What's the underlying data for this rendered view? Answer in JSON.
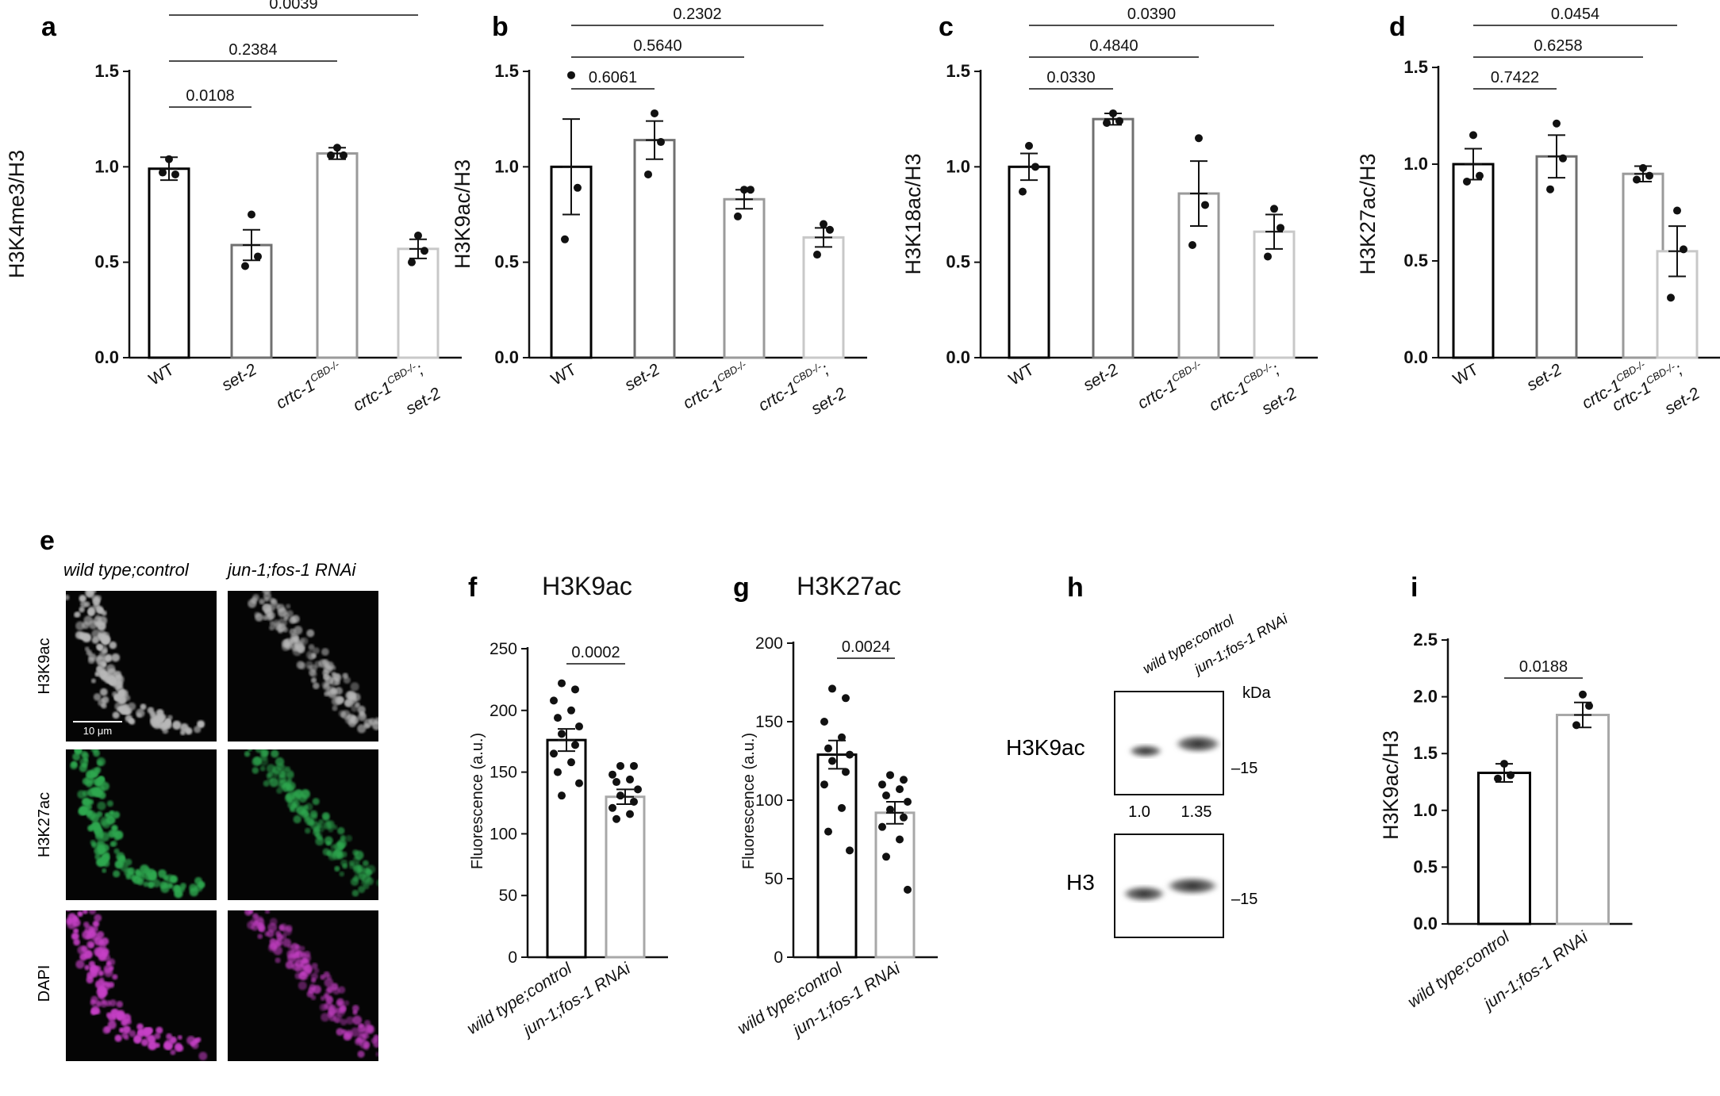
{
  "chart_data": [
    {
      "panel": "a",
      "type": "bar",
      "ylabel": "H3K4me3/H3",
      "yticks": [
        "0.0",
        "0.5",
        "1.0",
        "1.5"
      ],
      "ylim": [
        0,
        1.5
      ],
      "categories": [
        {
          "label": "WT",
          "italic": false,
          "sup": "",
          "line2": ""
        },
        {
          "label": "set-2",
          "italic": true,
          "sup": "",
          "line2": ""
        },
        {
          "label": "crtc-1",
          "italic": true,
          "sup": "CBD-/-",
          "line2": ""
        },
        {
          "label": "crtc-1",
          "italic": true,
          "sup": "CBD-/-",
          "line2": "; set-2"
        }
      ],
      "values": [
        0.99,
        0.59,
        1.07,
        0.57
      ],
      "errors": [
        0.06,
        0.08,
        0.03,
        0.05
      ],
      "points": [
        [
          1.04,
          0.96,
          0.97
        ],
        [
          0.75,
          0.53,
          0.48
        ],
        [
          1.1,
          1.06,
          1.06
        ],
        [
          0.64,
          0.56,
          0.5
        ]
      ],
      "comparisons": [
        {
          "from": 0,
          "to": 1,
          "label": "0.0108"
        },
        {
          "from": 0,
          "to": 2,
          "label": "0.2384"
        },
        {
          "from": 0,
          "to": 3,
          "label": "0.0039"
        }
      ]
    },
    {
      "panel": "b",
      "type": "bar",
      "ylabel": "H3K9ac/H3",
      "yticks": [
        "0.0",
        "0.5",
        "1.0",
        "1.5"
      ],
      "ylim": [
        0,
        1.5
      ],
      "categories": [
        {
          "label": "WT",
          "italic": false,
          "sup": "",
          "line2": ""
        },
        {
          "label": "set-2",
          "italic": true,
          "sup": "",
          "line2": ""
        },
        {
          "label": "crtc-1",
          "italic": true,
          "sup": "CBD-/-",
          "line2": ""
        },
        {
          "label": "crtc-1",
          "italic": true,
          "sup": "CBD-/-",
          "line2": "; set-2"
        }
      ],
      "values": [
        1.0,
        1.14,
        0.83,
        0.63
      ],
      "errors": [
        0.25,
        0.1,
        0.05,
        0.05
      ],
      "points": [
        [
          1.48,
          0.89,
          0.62
        ],
        [
          1.28,
          1.13,
          0.96
        ],
        [
          0.88,
          0.88,
          0.74
        ],
        [
          0.7,
          0.67,
          0.54
        ]
      ],
      "comparisons": [
        {
          "from": 0,
          "to": 1,
          "label": "0.6061"
        },
        {
          "from": 0,
          "to": 2,
          "label": "0.5640"
        },
        {
          "from": 0,
          "to": 3,
          "label": "0.2302"
        }
      ]
    },
    {
      "panel": "c",
      "type": "bar",
      "ylabel": "H3K18ac/H3",
      "yticks": [
        "0.0",
        "0.5",
        "1.0",
        "1.5"
      ],
      "ylim": [
        0,
        1.5
      ],
      "categories": [
        {
          "label": "WT",
          "italic": false,
          "sup": "",
          "line2": ""
        },
        {
          "label": "set-2",
          "italic": true,
          "sup": "",
          "line2": ""
        },
        {
          "label": "crtc-1",
          "italic": true,
          "sup": "CBD-/-",
          "line2": ""
        },
        {
          "label": "crtc-1",
          "italic": true,
          "sup": "CBD-/-",
          "line2": "; set-2"
        }
      ],
      "values": [
        1.0,
        1.25,
        0.86,
        0.66
      ],
      "errors": [
        0.07,
        0.03,
        0.17,
        0.09
      ],
      "points": [
        [
          1.11,
          1.0,
          0.87
        ],
        [
          1.28,
          1.24,
          1.23
        ],
        [
          1.15,
          0.8,
          0.59
        ],
        [
          0.78,
          0.68,
          0.53
        ]
      ],
      "comparisons": [
        {
          "from": 0,
          "to": 1,
          "label": "0.0330"
        },
        {
          "from": 0,
          "to": 2,
          "label": "0.4840"
        },
        {
          "from": 0,
          "to": 3,
          "label": "0.0390"
        }
      ]
    },
    {
      "panel": "d",
      "type": "bar",
      "ylabel": "H3K27ac/H3",
      "yticks": [
        "0.0",
        "0.5",
        "1.0",
        "1.5"
      ],
      "ylim": [
        0,
        1.5
      ],
      "categories": [
        {
          "label": "WT",
          "italic": false,
          "sup": "",
          "line2": ""
        },
        {
          "label": "set-2",
          "italic": true,
          "sup": "",
          "line2": ""
        },
        {
          "label": "crtc-1",
          "italic": true,
          "sup": "CBD-/-",
          "line2": ""
        },
        {
          "label": "crtc-1",
          "italic": true,
          "sup": "CBD-/-",
          "line2": "; set-2"
        }
      ],
      "values": [
        1.0,
        1.04,
        0.95,
        0.55
      ],
      "errors": [
        0.08,
        0.11,
        0.04,
        0.13
      ],
      "points": [
        [
          1.15,
          0.94,
          0.91
        ],
        [
          1.21,
          1.03,
          0.87
        ],
        [
          0.98,
          0.94,
          0.92
        ],
        [
          0.76,
          0.56,
          0.31
        ]
      ],
      "comparisons": [
        {
          "from": 0,
          "to": 1,
          "label": "0.7422"
        },
        {
          "from": 0,
          "to": 2,
          "label": "0.6258"
        },
        {
          "from": 0,
          "to": 3,
          "label": "0.0454"
        }
      ]
    },
    {
      "panel": "f",
      "type": "bar",
      "title": "H3K9ac",
      "ylabel": "Fluorescence (a.u.)",
      "yticks": [
        "0",
        "50",
        "100",
        "150",
        "200",
        "250"
      ],
      "ylim": [
        0,
        250
      ],
      "categories": [
        {
          "label": "wild type;control",
          "italic": true,
          "sup": "",
          "line2": ""
        },
        {
          "label": "jun-1;fos-1 RNAi",
          "italic": true,
          "sup": "",
          "line2": ""
        }
      ],
      "values": [
        176,
        130
      ],
      "errors": [
        9,
        6
      ],
      "points": [
        [
          222,
          217,
          208,
          200,
          194,
          187,
          181,
          172,
          165,
          158,
          150,
          141,
          131
        ],
        [
          155,
          155,
          148,
          144,
          142,
          136,
          131,
          126,
          121,
          116,
          112
        ]
      ],
      "comparisons": [
        {
          "from": 0,
          "to": 1,
          "label": "0.0002"
        }
      ]
    },
    {
      "panel": "g",
      "type": "bar",
      "title": "H3K27ac",
      "ylabel": "Fluorescence (a.u.)",
      "yticks": [
        "0",
        "50",
        "100",
        "150",
        "200"
      ],
      "ylim": [
        0,
        200
      ],
      "categories": [
        {
          "label": "wild type;control",
          "italic": true,
          "sup": "",
          "line2": ""
        },
        {
          "label": "jun-1;fos-1 RNAi",
          "italic": true,
          "sup": "",
          "line2": ""
        }
      ],
      "values": [
        129,
        92
      ],
      "errors": [
        9,
        7
      ],
      "points": [
        [
          171,
          165,
          150,
          140,
          133,
          129,
          125,
          118,
          110,
          95,
          80,
          68
        ],
        [
          116,
          113,
          110,
          107,
          103,
          99,
          94,
          89,
          83,
          75,
          64,
          43
        ]
      ],
      "comparisons": [
        {
          "from": 0,
          "to": 1,
          "label": "0.0024"
        }
      ]
    },
    {
      "panel": "i",
      "type": "bar",
      "ylabel": "H3K9ac/H3",
      "yticks": [
        "0.0",
        "0.5",
        "1.0",
        "1.5",
        "2.0",
        "2.5"
      ],
      "ylim": [
        0,
        2.5
      ],
      "categories": [
        {
          "label": "wild type;control",
          "italic": true,
          "sup": "",
          "line2": ""
        },
        {
          "label": "jun-1;fos-1 RNAi",
          "italic": true,
          "sup": "",
          "line2": ""
        }
      ],
      "values": [
        1.33,
        1.84
      ],
      "errors": [
        0.08,
        0.11
      ],
      "points": [
        [
          1.41,
          1.31,
          1.28
        ],
        [
          2.02,
          1.92,
          1.75
        ]
      ],
      "comparisons": [
        {
          "from": 0,
          "to": 1,
          "label": "0.0188"
        }
      ]
    }
  ],
  "microscopy": {
    "panel": "e",
    "columns": [
      "wild type;control",
      "jun-1;fos-1 RNAi"
    ],
    "rows": [
      {
        "label": "H3K9ac",
        "color": "#b8b8b8"
      },
      {
        "label": "H3K27ac",
        "color": "#2fa84f"
      },
      {
        "label": "DAPI",
        "color": "#c63fc6"
      }
    ],
    "scale_bar": "10 μm"
  },
  "blot": {
    "panel": "h",
    "columns": [
      "wild type;control",
      "jun-1;fos-1 RNAi"
    ],
    "unit": "kDa",
    "rows": [
      {
        "label": "H3K9ac",
        "marker": "–15",
        "quant": [
          "1.0",
          "1.35"
        ]
      },
      {
        "label": "H3",
        "marker": "–15",
        "quant": []
      }
    ]
  }
}
